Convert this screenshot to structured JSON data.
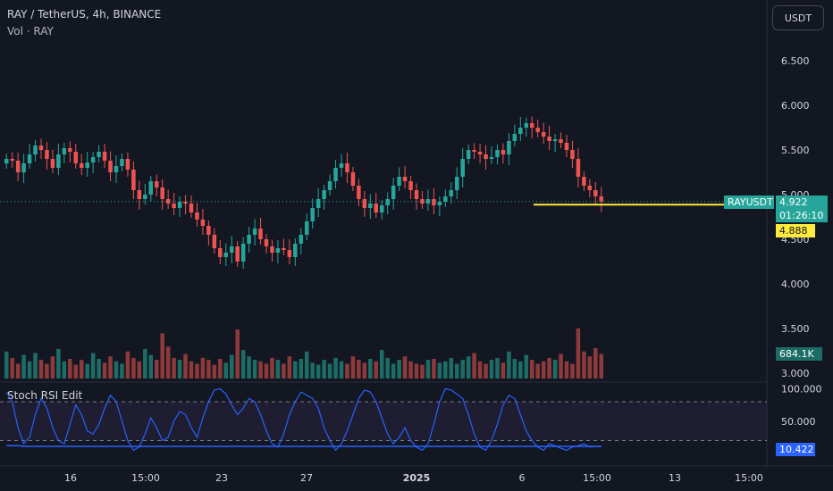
{
  "header": {
    "title": "RAY / TetherUS, 4h, BINANCE",
    "volume_label": "Vol · RAY",
    "currency": "USDT"
  },
  "stoch": {
    "title": "Stoch RSI Edit"
  },
  "colors": {
    "up": "#26a69a",
    "down": "#ef5350",
    "vol_up": "#1d6d66",
    "vol_down": "#8e3a3a",
    "k_line": "#2962ff",
    "price_line": "#26a69a",
    "level_line": "#ffeb3b"
  },
  "labels": {
    "symbol": "RAYUSDT",
    "last_price": "4.922",
    "countdown": "01:26:10",
    "level_price": "4.888",
    "volume_value": "684.1K",
    "stoch_value": "10.422"
  },
  "chart_data": [
    {
      "type": "candlestick",
      "price_ticks": [
        "6.500",
        "6.000",
        "5.500",
        "5.000",
        "4.500",
        "4.000",
        "3.500",
        "3.000"
      ],
      "x_ticks": [
        "16",
        "15:00",
        "23",
        "27",
        "2025",
        "6",
        "15:00",
        "13",
        "15:00"
      ],
      "ylim": [
        3.0,
        6.5
      ],
      "last_price": 4.922,
      "level": 4.888,
      "series": [
        {
          "name": "price",
          "values": [
            5.4,
            5.38,
            5.25,
            5.35,
            5.45,
            5.55,
            5.5,
            5.4,
            5.3,
            5.45,
            5.52,
            5.48,
            5.35,
            5.3,
            5.36,
            5.42,
            5.48,
            5.38,
            5.25,
            5.32,
            5.4,
            5.28,
            5.05,
            4.95,
            5.0,
            5.15,
            5.08,
            4.95,
            4.9,
            4.85,
            4.92,
            4.9,
            4.8,
            4.72,
            4.65,
            4.55,
            4.4,
            4.3,
            4.35,
            4.42,
            4.25,
            4.45,
            4.55,
            4.62,
            4.5,
            4.42,
            4.35,
            4.4,
            4.38,
            4.3,
            4.45,
            4.55,
            4.7,
            4.85,
            4.95,
            5.05,
            5.15,
            5.3,
            5.35,
            5.25,
            5.1,
            4.95,
            4.85,
            4.9,
            4.8,
            4.88,
            4.95,
            5.1,
            5.2,
            5.15,
            5.05,
            4.95,
            4.9,
            4.95,
            4.88,
            4.92,
            4.98,
            5.05,
            5.2,
            5.4,
            5.5,
            5.48,
            5.45,
            5.4,
            5.42,
            5.5,
            5.45,
            5.6,
            5.68,
            5.75,
            5.8,
            5.75,
            5.7,
            5.65,
            5.6,
            5.62,
            5.58,
            5.5,
            5.4,
            5.2,
            5.1,
            5.05,
            4.98,
            4.922
          ]
        }
      ]
    },
    {
      "type": "bar",
      "title": "Vol · RAY",
      "last_value": "684.1K",
      "values": [
        0.55,
        0.42,
        0.3,
        0.48,
        0.35,
        0.52,
        0.38,
        0.3,
        0.45,
        0.6,
        0.35,
        0.4,
        0.28,
        0.38,
        0.3,
        0.52,
        0.4,
        0.32,
        0.45,
        0.35,
        0.3,
        0.55,
        0.42,
        0.35,
        0.6,
        0.48,
        0.38,
        0.92,
        0.65,
        0.42,
        0.38,
        0.5,
        0.35,
        0.3,
        0.42,
        0.38,
        0.28,
        0.4,
        0.32,
        0.48,
        1.0,
        0.58,
        0.45,
        0.38,
        0.35,
        0.3,
        0.42,
        0.38,
        0.3,
        0.45,
        0.35,
        0.4,
        0.55,
        0.32,
        0.28,
        0.38,
        0.3,
        0.42,
        0.35,
        0.3,
        0.45,
        0.38,
        0.32,
        0.4,
        0.35,
        0.58,
        0.42,
        0.3,
        0.38,
        0.45,
        0.35,
        0.3,
        0.28,
        0.38,
        0.4,
        0.32,
        0.35,
        0.42,
        0.3,
        0.38,
        0.45,
        0.52,
        0.35,
        0.3,
        0.38,
        0.42,
        0.32,
        0.55,
        0.4,
        0.35,
        0.48,
        0.38,
        0.3,
        0.35,
        0.42,
        0.38,
        0.5,
        0.35,
        0.3,
        1.02,
        0.55,
        0.45,
        0.62,
        0.5
      ]
    },
    {
      "type": "line",
      "title": "Stoch RSI Edit",
      "y_ticks": [
        "100.000",
        "50.000"
      ],
      "ylim": [
        0,
        100
      ],
      "bands": [
        80,
        20
      ],
      "series": [
        {
          "name": "K",
          "values": [
            95,
            80,
            40,
            15,
            25,
            60,
            85,
            70,
            40,
            20,
            15,
            45,
            75,
            60,
            35,
            30,
            45,
            70,
            90,
            80,
            50,
            20,
            5,
            10,
            30,
            55,
            40,
            20,
            25,
            50,
            65,
            60,
            40,
            25,
            55,
            80,
            98,
            100,
            92,
            75,
            60,
            70,
            85,
            80,
            60,
            35,
            15,
            10,
            30,
            60,
            80,
            95,
            90,
            85,
            70,
            40,
            20,
            5,
            15,
            35,
            60,
            85,
            98,
            95,
            80,
            55,
            30,
            15,
            25,
            40,
            20,
            10,
            5,
            15,
            45,
            80,
            100,
            98,
            92,
            85,
            60,
            30,
            10,
            5,
            20,
            45,
            75,
            90,
            85,
            60,
            35,
            20,
            10,
            5,
            15,
            12,
            8,
            5,
            10,
            12,
            15,
            10,
            11,
            10.4
          ]
        },
        {
          "name": "D",
          "values": [
            12,
            12,
            12,
            11,
            11,
            11,
            11,
            11,
            11,
            11,
            11,
            11,
            11,
            11,
            11,
            11,
            11,
            11,
            11,
            11,
            11,
            11,
            11,
            11,
            11,
            11,
            11,
            11,
            11,
            11,
            11,
            11,
            11,
            11,
            11,
            11,
            11,
            11,
            11,
            11,
            11,
            11,
            11,
            11,
            11,
            11,
            11,
            11,
            11,
            11,
            11,
            11,
            11,
            11,
            11,
            11,
            11,
            11,
            11,
            11,
            11,
            11,
            11,
            11,
            11,
            11,
            11,
            11,
            11,
            11,
            11,
            11,
            11,
            11,
            11,
            11,
            11,
            11,
            11,
            11,
            11,
            11,
            11,
            11,
            11,
            11,
            11,
            11,
            11,
            11,
            11,
            11,
            11,
            11,
            11,
            11,
            11,
            11,
            11,
            11,
            11,
            11,
            11,
            11
          ]
        }
      ]
    }
  ]
}
